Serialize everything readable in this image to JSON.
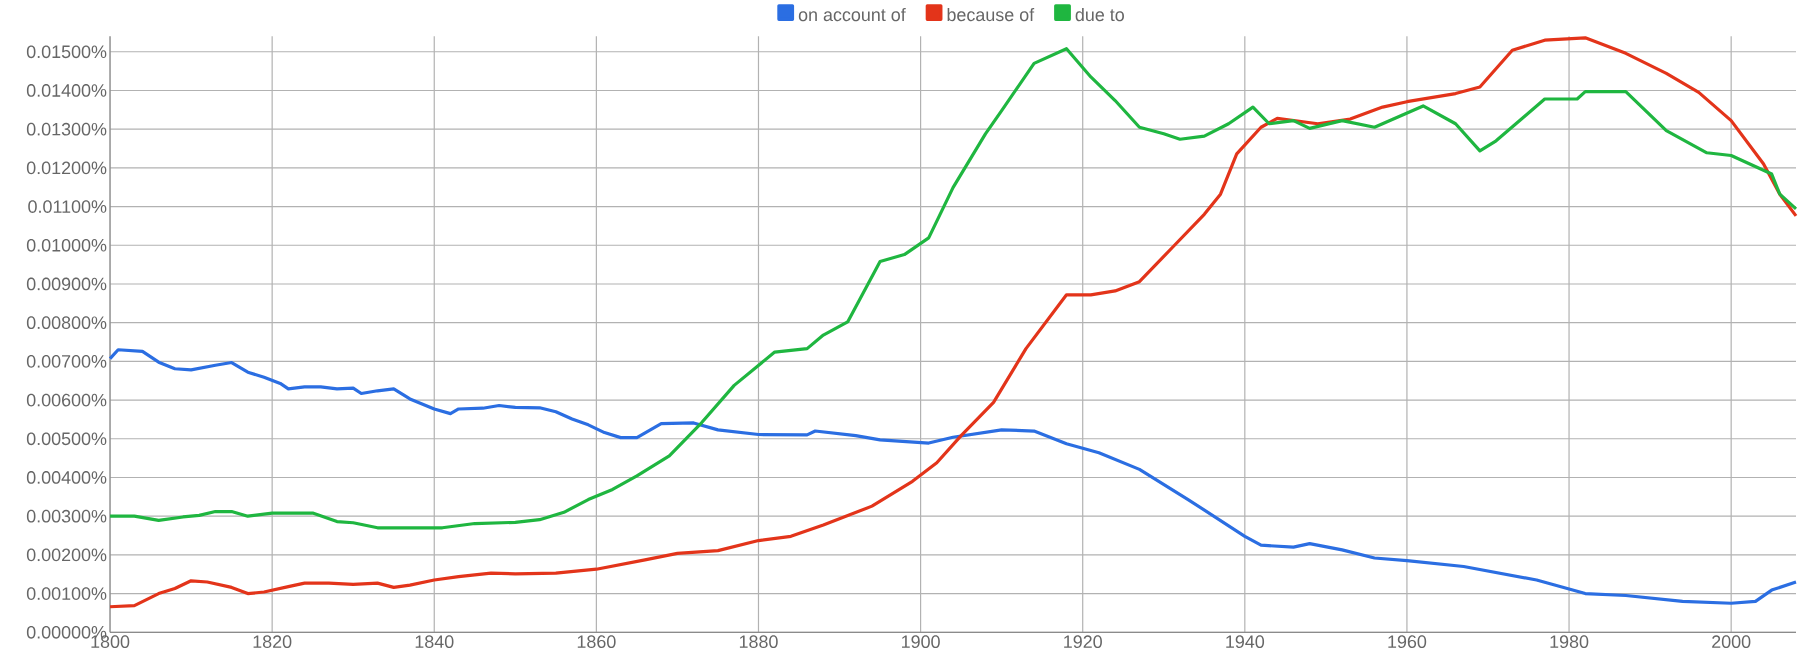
{
  "chart_data": {
    "type": "line",
    "xlim": [
      1800,
      2008
    ],
    "ylim": [
      0,
      0.0154
    ],
    "xticks": [
      1800,
      1820,
      1840,
      1860,
      1880,
      1900,
      1920,
      1940,
      1960,
      1980,
      2000
    ],
    "yticks": [
      {
        "value": 0,
        "label": "0.00000%"
      },
      {
        "value": 0.001,
        "label": "0.00100%"
      },
      {
        "value": 0.002,
        "label": "0.00200%"
      },
      {
        "value": 0.003,
        "label": "0.00300%"
      },
      {
        "value": 0.004,
        "label": "0.00400%"
      },
      {
        "value": 0.005,
        "label": "0.00500%"
      },
      {
        "value": 0.006,
        "label": "0.00600%"
      },
      {
        "value": 0.007,
        "label": "0.00700%"
      },
      {
        "value": 0.008,
        "label": "0.00800%"
      },
      {
        "value": 0.009,
        "label": "0.00900%"
      },
      {
        "value": 0.01,
        "label": "0.01000%"
      },
      {
        "value": 0.011,
        "label": "0.01100%"
      },
      {
        "value": 0.012,
        "label": "0.01200%"
      },
      {
        "value": 0.013,
        "label": "0.01300%"
      },
      {
        "value": 0.014,
        "label": "0.01400%"
      },
      {
        "value": 0.015,
        "label": "0.01500%"
      }
    ],
    "grid": true,
    "legend": "top",
    "marker": "none",
    "line_style": "solid",
    "series": [
      {
        "name": "on account of",
        "color": "#2b6ee2",
        "x": [
          1800,
          1801,
          1804,
          1806,
          1808,
          1810,
          1813,
          1815,
          1817,
          1819,
          1821,
          1822,
          1824,
          1826,
          1828,
          1830,
          1831,
          1833,
          1835,
          1837,
          1840,
          1842,
          1843,
          1846,
          1848,
          1850,
          1853,
          1855,
          1857,
          1859,
          1861,
          1863,
          1865,
          1868,
          1872,
          1875,
          1880,
          1886,
          1887,
          1892,
          1895,
          1901,
          1904,
          1910,
          1914,
          1918,
          1922,
          1927,
          1933,
          1940,
          1942,
          1946,
          1948,
          1952,
          1956,
          1960,
          1967,
          1976,
          1982,
          1987,
          1994,
          2000,
          2003,
          2005,
          2008
        ],
        "values": [
          0.00707,
          0.0073,
          0.00726,
          0.00698,
          0.00681,
          0.00678,
          0.0069,
          0.00697,
          0.00672,
          0.00659,
          0.00643,
          0.00629,
          0.00634,
          0.00634,
          0.00629,
          0.00631,
          0.00617,
          0.00624,
          0.00629,
          0.00603,
          0.00577,
          0.00565,
          0.00577,
          0.00579,
          0.00586,
          0.00581,
          0.0058,
          0.0057,
          0.00551,
          0.00536,
          0.00516,
          0.00503,
          0.00503,
          0.00539,
          0.00541,
          0.00523,
          0.00511,
          0.0051,
          0.0052,
          0.00508,
          0.00497,
          0.00489,
          0.00504,
          0.00523,
          0.0052,
          0.00487,
          0.00464,
          0.00421,
          0.00343,
          0.00248,
          0.00225,
          0.0022,
          0.00229,
          0.00213,
          0.00192,
          0.00185,
          0.0017,
          0.00135,
          0.001,
          0.00095,
          0.0008,
          0.00075,
          0.0008,
          0.00109,
          0.0013
        ]
      },
      {
        "name": "because of",
        "color": "#e3341a",
        "x": [
          1800,
          1803,
          1806,
          1808,
          1810,
          1812,
          1815,
          1817,
          1819,
          1822,
          1824,
          1827,
          1830,
          1833,
          1835,
          1837,
          1840,
          1843,
          1847,
          1850,
          1855,
          1860,
          1866,
          1870,
          1875,
          1880,
          1884,
          1888,
          1894,
          1899,
          1902,
          1905,
          1909,
          1913,
          1918,
          1921,
          1924,
          1927,
          1931,
          1935,
          1937,
          1939,
          1942,
          1944,
          1949,
          1953,
          1957,
          1960,
          1966,
          1969,
          1973,
          1977,
          1982,
          1987,
          1992,
          1996,
          2000,
          2004,
          2006,
          2008
        ],
        "values": [
          0.00066,
          0.00069,
          0.001,
          0.00113,
          0.00133,
          0.0013,
          0.00116,
          0.001,
          0.00104,
          0.00118,
          0.00127,
          0.00127,
          0.00124,
          0.00127,
          0.00116,
          0.00122,
          0.00135,
          0.00144,
          0.00153,
          0.00151,
          0.00153,
          0.00163,
          0.00187,
          0.00204,
          0.00211,
          0.00237,
          0.00248,
          0.00277,
          0.00326,
          0.0039,
          0.00438,
          0.00508,
          0.00594,
          0.00733,
          0.00872,
          0.00872,
          0.00882,
          0.00906,
          0.00993,
          0.0108,
          0.01132,
          0.01236,
          0.01305,
          0.01328,
          0.01314,
          0.01326,
          0.01357,
          0.01371,
          0.01392,
          0.01409,
          0.01504,
          0.0153,
          0.01536,
          0.01496,
          0.01444,
          0.01395,
          0.01322,
          0.0121,
          0.01132,
          0.01076
        ]
      },
      {
        "name": "due to",
        "color": "#1fb640",
        "x": [
          1800,
          1803,
          1806,
          1809,
          1811,
          1813,
          1815,
          1817,
          1820,
          1825,
          1828,
          1830,
          1833,
          1838,
          1841,
          1845,
          1850,
          1853,
          1856,
          1859,
          1862,
          1865,
          1869,
          1873,
          1877,
          1882,
          1886,
          1888,
          1891,
          1893,
          1895,
          1898,
          1901,
          1904,
          1908,
          1910,
          1914,
          1918,
          1921,
          1924,
          1927,
          1930,
          1932,
          1935,
          1938,
          1941,
          1943,
          1946,
          1948,
          1952,
          1956,
          1962,
          1966,
          1969,
          1971,
          1977,
          1981,
          1982,
          1987,
          1992,
          1997,
          2000,
          2005,
          2006,
          2008
        ],
        "values": [
          0.003,
          0.003,
          0.00289,
          0.00298,
          0.00302,
          0.00312,
          0.00312,
          0.003,
          0.00308,
          0.00308,
          0.00286,
          0.00283,
          0.0027,
          0.0027,
          0.0027,
          0.00281,
          0.00284,
          0.00291,
          0.0031,
          0.00343,
          0.00369,
          0.00404,
          0.00456,
          0.00542,
          0.00638,
          0.00724,
          0.00733,
          0.00768,
          0.00802,
          0.0088,
          0.00958,
          0.00976,
          0.01019,
          0.01149,
          0.01288,
          0.01348,
          0.0147,
          0.01508,
          0.01435,
          0.01374,
          0.01305,
          0.01288,
          0.01274,
          0.01282,
          0.01314,
          0.01357,
          0.01314,
          0.01322,
          0.01302,
          0.01322,
          0.01305,
          0.0136,
          0.01314,
          0.01244,
          0.0127,
          0.01378,
          0.01378,
          0.01397,
          0.01397,
          0.01296,
          0.01239,
          0.01232,
          0.01184,
          0.01132,
          0.01094
        ]
      }
    ]
  }
}
